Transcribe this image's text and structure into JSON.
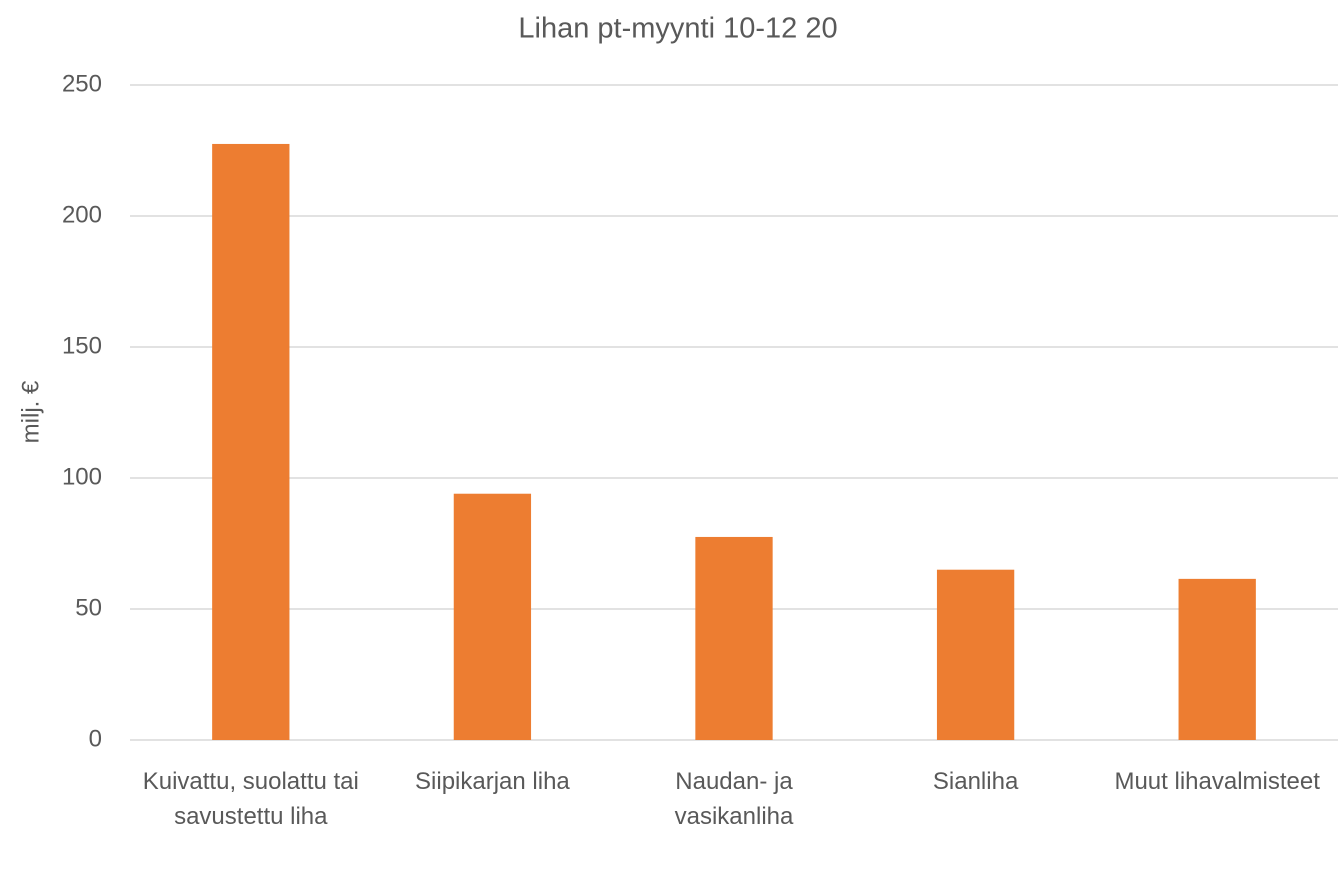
{
  "chart_data": {
    "type": "bar",
    "title": "Lihan pt-myynti 10-12 20",
    "y_label": "milj. €",
    "categories": [
      "Kuivattu, suolattu tai savustettu liha",
      "Siipikarjan liha",
      "Naudan- ja vasikanliha",
      "Sianliha",
      "Muut lihavalmisteet"
    ],
    "values": [
      227.5,
      94,
      77.5,
      65,
      61.5
    ],
    "color": "#ed7d31",
    "ylim": [
      0,
      250
    ],
    "yticks": [
      0,
      50,
      100,
      150,
      200,
      250
    ],
    "grid": true
  }
}
